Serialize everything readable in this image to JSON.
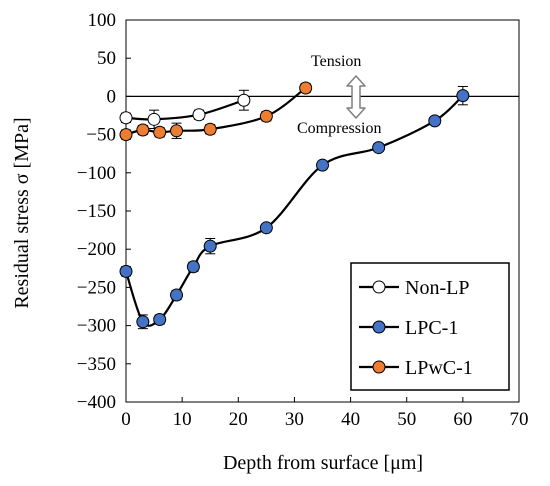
{
  "chart_data": {
    "type": "scatter",
    "xlabel": "Depth from surface [μm]",
    "ylabel": "Residual stress σ [MPa]",
    "xlim": [
      0,
      70
    ],
    "ylim": [
      -400,
      100
    ],
    "xticks": [
      0,
      10,
      20,
      30,
      40,
      50,
      60,
      70
    ],
    "yticks": [
      100,
      50,
      0,
      -50,
      -100,
      -150,
      -200,
      -250,
      -300,
      -350,
      -400
    ],
    "grid": false,
    "legend_position": "bottom-right",
    "annotations": {
      "tension": "Tension",
      "compression": "Compression"
    },
    "series": [
      {
        "name": "Non-LP",
        "marker_fill": "#ffffff",
        "points": [
          {
            "x": 0,
            "y": -28,
            "err": 6
          },
          {
            "x": 5,
            "y": -30,
            "err": 12
          },
          {
            "x": 13,
            "y": -24,
            "err": 6
          },
          {
            "x": 21,
            "y": -5,
            "err": 13
          }
        ]
      },
      {
        "name": "LPC-1",
        "marker_fill": "#4472c4",
        "points": [
          {
            "x": 0,
            "y": -229,
            "err": 6
          },
          {
            "x": 3,
            "y": -295,
            "err": 9
          },
          {
            "x": 6,
            "y": -292,
            "err": 6
          },
          {
            "x": 9,
            "y": -260,
            "err": 6
          },
          {
            "x": 12,
            "y": -223,
            "err": 6
          },
          {
            "x": 15,
            "y": -196,
            "err": 10
          },
          {
            "x": 25,
            "y": -172,
            "err": 5
          },
          {
            "x": 35,
            "y": -90,
            "err": 5
          },
          {
            "x": 45,
            "y": -67,
            "err": 5
          },
          {
            "x": 55,
            "y": -32,
            "err": 5
          },
          {
            "x": 60,
            "y": 1,
            "err": 12
          }
        ]
      },
      {
        "name": "LPwC-1",
        "marker_fill": "#ed7d31",
        "points": [
          {
            "x": 0,
            "y": -50,
            "err": 6
          },
          {
            "x": 3,
            "y": -44,
            "err": 6
          },
          {
            "x": 6,
            "y": -47,
            "err": 6
          },
          {
            "x": 9,
            "y": -45,
            "err": 10
          },
          {
            "x": 15,
            "y": -43,
            "err": 6
          },
          {
            "x": 25,
            "y": -26,
            "err": 6
          },
          {
            "x": 32,
            "y": 11,
            "err": 6
          }
        ]
      }
    ]
  }
}
